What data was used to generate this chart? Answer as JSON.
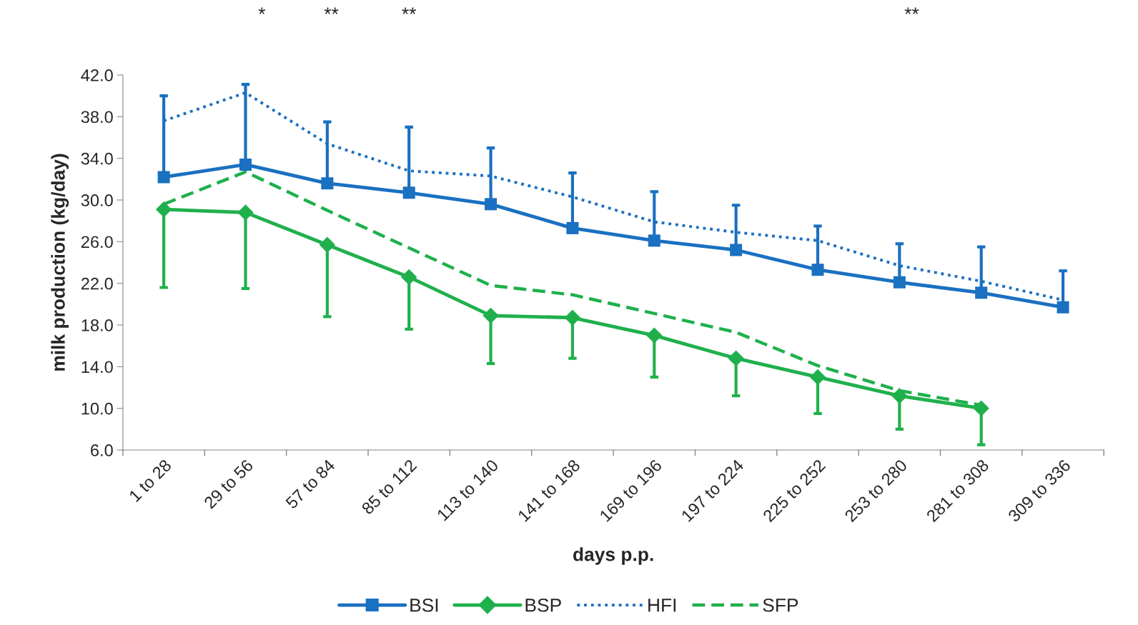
{
  "chart_data": {
    "type": "line",
    "xlabel": "days p.p.",
    "ylabel": "milk production (kg/day)",
    "categories": [
      "1 to 28",
      "29 to 56",
      "57 to 84",
      "85 to 112",
      "113 to 140",
      "141 to 168",
      "169 to 196",
      "197 to 224",
      "225 to 252",
      "253 to 280",
      "281 to 308",
      "309 to 336"
    ],
    "ylim": [
      6,
      42
    ],
    "yticks": [
      {
        "value": 6,
        "label": "6.0"
      },
      {
        "value": 10,
        "label": "10.0"
      },
      {
        "value": 14,
        "label": "14.0"
      },
      {
        "value": 18,
        "label": "18.0"
      },
      {
        "value": 22,
        "label": "22.0"
      },
      {
        "value": 26,
        "label": "26.0"
      },
      {
        "value": 30,
        "label": "30.0"
      },
      {
        "value": 34,
        "label": "34.0"
      },
      {
        "value": 38,
        "label": "38.0"
      },
      {
        "value": 42,
        "label": "42.0"
      }
    ],
    "grid": false,
    "legend": "bottom",
    "series": [
      {
        "name": "BSI",
        "color": "#1a70c1",
        "marker": "square",
        "line_style": "solid",
        "values": [
          32.2,
          33.4,
          31.6,
          30.7,
          29.6,
          27.3,
          26.1,
          25.2,
          23.3,
          22.1,
          21.1,
          19.7
        ],
        "errors": [
          [
            32.2,
            40.0
          ],
          [
            33.4,
            41.1
          ],
          [
            31.6,
            37.5
          ],
          [
            30.7,
            37.0
          ],
          [
            29.6,
            35.0
          ],
          [
            27.3,
            32.6
          ],
          [
            26.1,
            30.8
          ],
          [
            25.2,
            29.5
          ],
          [
            23.3,
            27.5
          ],
          [
            22.1,
            25.8
          ],
          [
            21.1,
            25.5
          ],
          [
            19.7,
            23.2
          ]
        ]
      },
      {
        "name": "BSP",
        "color": "#1fb04c",
        "marker": "diamond",
        "line_style": "solid",
        "values": [
          29.1,
          28.8,
          25.7,
          22.6,
          18.9,
          18.7,
          17.0,
          14.8,
          13.0,
          11.2,
          10.0,
          null
        ],
        "errors": [
          [
            21.6,
            29.1
          ],
          [
            21.5,
            28.8
          ],
          [
            18.8,
            25.7
          ],
          [
            17.6,
            22.6
          ],
          [
            14.3,
            18.9
          ],
          [
            14.8,
            18.7
          ],
          [
            13.0,
            17.0
          ],
          [
            11.2,
            14.8
          ],
          [
            9.5,
            13.0
          ],
          [
            8.0,
            11.2
          ],
          [
            6.5,
            10.0
          ],
          null
        ]
      },
      {
        "name": "HFI",
        "color": "#1a70c1",
        "marker": "none",
        "line_style": "dotted",
        "values": [
          37.6,
          40.3,
          35.4,
          32.8,
          32.3,
          30.3,
          27.9,
          26.9,
          26.1,
          23.7,
          22.2,
          20.4
        ]
      },
      {
        "name": "SFP",
        "color": "#1fb04c",
        "marker": "none",
        "line_style": "dashed",
        "values": [
          29.6,
          32.7,
          29.0,
          25.4,
          21.8,
          20.9,
          19.1,
          17.3,
          14.1,
          11.7,
          10.3,
          null
        ]
      }
    ],
    "annotations": [
      "*",
      "**",
      "**",
      "**"
    ]
  }
}
